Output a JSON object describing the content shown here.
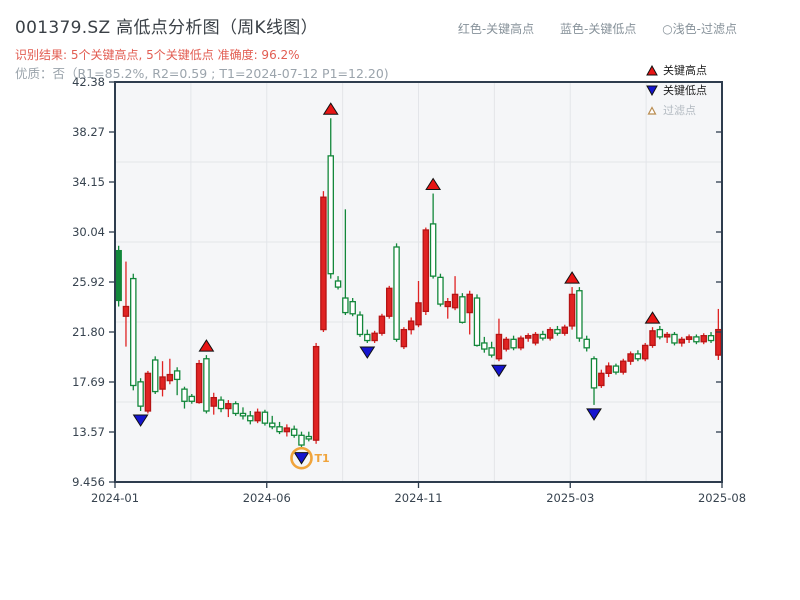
{
  "header": {
    "title": "001379.SZ 高低点分析图（周K线图）",
    "note_high": "红色-关键高点",
    "note_low": "蓝色-关键低点",
    "note_filtered": "○浅色-过滤点",
    "result_line": "识别结果: 5个关键高点, 5个关键低点  准确度: 96.2%",
    "quality_line": "优质：否（R1=85.2%, R2=0.59 ; T1=2024-07-12 P1=12.20)"
  },
  "chart_data": {
    "type": "candlestick",
    "title": "001379.SZ 高低点分析图（周K线图）",
    "x_ticks": [
      "2024-01",
      "2024-06",
      "2024-11",
      "2025-03",
      "2025-08"
    ],
    "y_ticks": [
      "42.38",
      "38.27",
      "34.15",
      "30.04",
      "25.92",
      "21.80",
      "17.69",
      "13.57",
      "9.456"
    ],
    "ylim": [
      9.456,
      42.38
    ],
    "grid": "on",
    "legend_position": "upper-right",
    "candles": [
      [
        28.5,
        28.9,
        23.9,
        24.4
      ],
      [
        23.1,
        27.6,
        20.6,
        23.9
      ],
      [
        26.2,
        26.6,
        17.0,
        17.4
      ],
      [
        17.7,
        18.0,
        15.3,
        15.7
      ],
      [
        15.3,
        18.6,
        15.1,
        18.4
      ],
      [
        19.5,
        19.8,
        16.7,
        16.9
      ],
      [
        17.1,
        19.4,
        16.5,
        18.1
      ],
      [
        17.8,
        19.6,
        17.5,
        18.3
      ],
      [
        18.6,
        18.9,
        16.6,
        17.9
      ],
      [
        17.1,
        17.3,
        15.5,
        16.1
      ],
      [
        16.5,
        16.7,
        15.9,
        16.1
      ],
      [
        16.0,
        19.5,
        15.9,
        19.2
      ],
      [
        19.6,
        19.9,
        15.1,
        15.3
      ],
      [
        15.7,
        16.8,
        15.0,
        16.4
      ],
      [
        16.2,
        16.5,
        15.2,
        15.5
      ],
      [
        15.5,
        16.2,
        14.8,
        15.9
      ],
      [
        15.9,
        16.1,
        14.9,
        15.1
      ],
      [
        15.1,
        15.6,
        14.6,
        14.9
      ],
      [
        14.9,
        15.3,
        14.2,
        14.5
      ],
      [
        14.5,
        15.5,
        14.3,
        15.2
      ],
      [
        15.2,
        15.4,
        14.1,
        14.3
      ],
      [
        14.3,
        14.9,
        13.8,
        14.0
      ],
      [
        14.0,
        14.4,
        13.4,
        13.6
      ],
      [
        13.6,
        14.2,
        13.2,
        13.9
      ],
      [
        13.8,
        14.1,
        13.1,
        13.3
      ],
      [
        13.3,
        13.6,
        12.2,
        12.5
      ],
      [
        13.2,
        13.6,
        12.8,
        13.0
      ],
      [
        12.9,
        20.9,
        12.6,
        20.6
      ],
      [
        22.0,
        33.4,
        21.8,
        32.9
      ],
      [
        36.3,
        39.4,
        26.2,
        26.6
      ],
      [
        26.0,
        26.4,
        25.3,
        25.5
      ],
      [
        24.6,
        31.9,
        23.2,
        23.4
      ],
      [
        24.3,
        24.6,
        23.1,
        23.3
      ],
      [
        23.2,
        23.5,
        21.4,
        21.6
      ],
      [
        21.6,
        22.0,
        20.9,
        21.1
      ],
      [
        21.1,
        21.9,
        20.9,
        21.7
      ],
      [
        21.7,
        23.3,
        21.5,
        23.1
      ],
      [
        23.1,
        25.6,
        22.9,
        25.4
      ],
      [
        28.8,
        29.1,
        21.0,
        21.2
      ],
      [
        20.6,
        22.2,
        20.4,
        22.0
      ],
      [
        22.0,
        23.0,
        21.6,
        22.7
      ],
      [
        22.4,
        26.0,
        22.2,
        24.2
      ],
      [
        23.5,
        30.4,
        23.2,
        30.2
      ],
      [
        30.7,
        33.2,
        26.2,
        26.4
      ],
      [
        26.3,
        26.6,
        23.9,
        24.1
      ],
      [
        23.9,
        24.6,
        22.9,
        24.3
      ],
      [
        23.8,
        26.4,
        23.6,
        24.9
      ],
      [
        24.7,
        25.0,
        22.5,
        22.6
      ],
      [
        23.4,
        25.2,
        21.6,
        24.9
      ],
      [
        24.6,
        24.9,
        20.6,
        20.7
      ],
      [
        20.9,
        21.4,
        20.1,
        20.4
      ],
      [
        20.5,
        21.0,
        19.7,
        19.9
      ],
      [
        19.6,
        22.9,
        19.4,
        21.6
      ],
      [
        20.4,
        21.4,
        20.2,
        21.2
      ],
      [
        21.2,
        21.5,
        20.3,
        20.5
      ],
      [
        20.5,
        21.5,
        20.3,
        21.3
      ],
      [
        21.3,
        21.7,
        21.0,
        21.5
      ],
      [
        20.9,
        21.8,
        20.7,
        21.6
      ],
      [
        21.6,
        21.9,
        21.1,
        21.3
      ],
      [
        21.3,
        22.2,
        21.1,
        22.0
      ],
      [
        22.0,
        22.3,
        21.5,
        21.7
      ],
      [
        21.7,
        22.4,
        21.5,
        22.2
      ],
      [
        22.3,
        25.5,
        22.0,
        24.9
      ],
      [
        25.2,
        25.5,
        21.0,
        21.3
      ],
      [
        21.2,
        21.5,
        20.2,
        20.5
      ],
      [
        19.6,
        19.8,
        15.8,
        17.2
      ],
      [
        17.4,
        18.7,
        17.2,
        18.4
      ],
      [
        18.4,
        19.3,
        18.1,
        19.0
      ],
      [
        19.0,
        19.2,
        18.3,
        18.5
      ],
      [
        18.5,
        19.6,
        18.3,
        19.4
      ],
      [
        19.4,
        20.2,
        19.1,
        20.0
      ],
      [
        20.0,
        20.3,
        19.4,
        19.6
      ],
      [
        19.6,
        20.9,
        19.4,
        20.7
      ],
      [
        20.7,
        22.2,
        20.5,
        21.9
      ],
      [
        22.0,
        22.3,
        21.2,
        21.4
      ],
      [
        21.4,
        21.8,
        20.9,
        21.6
      ],
      [
        21.6,
        21.8,
        20.7,
        20.9
      ],
      [
        20.9,
        21.4,
        20.6,
        21.2
      ],
      [
        21.2,
        21.6,
        20.9,
        21.4
      ],
      [
        21.4,
        21.6,
        20.8,
        21.0
      ],
      [
        21.0,
        21.7,
        20.8,
        21.5
      ],
      [
        21.5,
        21.8,
        20.9,
        21.1
      ],
      [
        19.9,
        23.7,
        19.5,
        22.0
      ]
    ],
    "key_high_weeks": [
      12,
      29,
      43,
      62,
      73
    ],
    "key_low_weeks": [
      3,
      25,
      34,
      52,
      65
    ],
    "t1_marker": {
      "week": 25,
      "label": "T1"
    },
    "filled_green_indices": [
      0
    ],
    "legend": {
      "items": [
        {
          "label": "关键高点",
          "icon": "triangle-up-red"
        },
        {
          "label": "关键低点",
          "icon": "triangle-down-blue"
        },
        {
          "label": "过滤点",
          "icon": "triangle-up-hollow"
        }
      ]
    },
    "colors": {
      "up": "#e02323",
      "up_edge": "#b51414",
      "down": "#12873a",
      "down_fill": "#ffffff",
      "high_marker": "#e81515",
      "low_marker": "#1515cf",
      "marker_edge": "#111111",
      "t1_accent": "#f0a43c",
      "grid": "#e3e5e9",
      "spine": "#2e3d4e",
      "tick_label": "#37434f",
      "bg": "#f5f6f8"
    }
  }
}
